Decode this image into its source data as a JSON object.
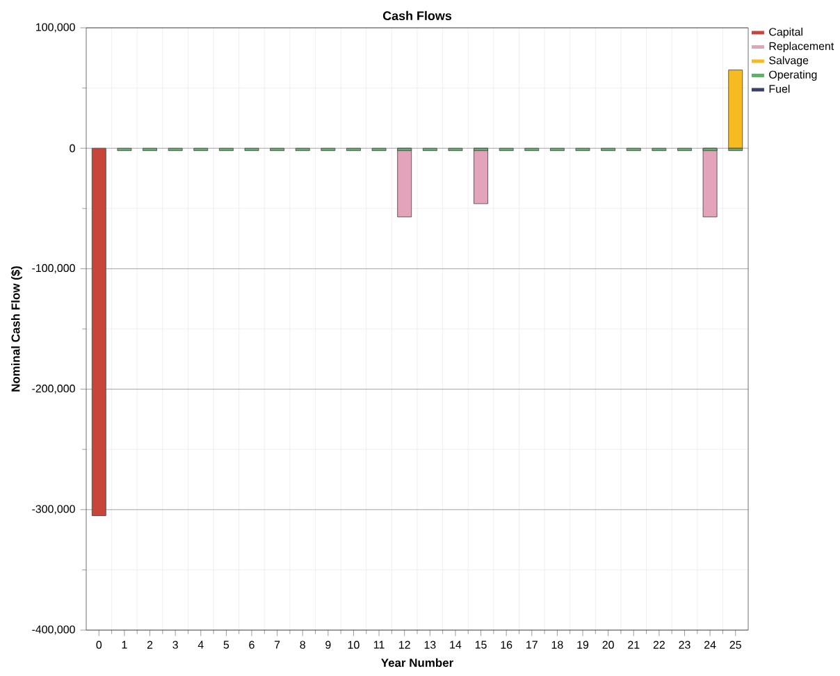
{
  "chart_data": {
    "type": "bar",
    "title": "Cash Flows",
    "xlabel": "Year Number",
    "ylabel": "Nominal Cash Flow ($)",
    "categories": [
      "0",
      "1",
      "2",
      "3",
      "4",
      "5",
      "6",
      "7",
      "8",
      "9",
      "10",
      "11",
      "12",
      "13",
      "14",
      "15",
      "16",
      "17",
      "18",
      "19",
      "20",
      "21",
      "22",
      "23",
      "24",
      "25"
    ],
    "series": [
      {
        "name": "Capital",
        "color": "#c8453a",
        "values": [
          -305000,
          null,
          null,
          null,
          null,
          null,
          null,
          null,
          null,
          null,
          null,
          null,
          null,
          null,
          null,
          null,
          null,
          null,
          null,
          null,
          null,
          null,
          null,
          null,
          null,
          null
        ]
      },
      {
        "name": "Replacement",
        "color": "#e3a3bb",
        "values": [
          null,
          null,
          null,
          null,
          null,
          null,
          null,
          null,
          null,
          null,
          null,
          null,
          -57000,
          null,
          null,
          -46000,
          null,
          null,
          null,
          null,
          null,
          null,
          null,
          null,
          -57000,
          null
        ]
      },
      {
        "name": "Salvage",
        "color": "#f6bb21",
        "values": [
          null,
          null,
          null,
          null,
          null,
          null,
          null,
          null,
          null,
          null,
          null,
          null,
          null,
          null,
          null,
          null,
          null,
          null,
          null,
          null,
          null,
          null,
          null,
          null,
          null,
          65000
        ]
      },
      {
        "name": "Operating",
        "color": "#62ae6e",
        "values": [
          null,
          -2000,
          -2000,
          -2000,
          -2000,
          -2000,
          -2000,
          -2000,
          -2000,
          -2000,
          -2000,
          -2000,
          -2000,
          -2000,
          -2000,
          -2000,
          -2000,
          -2000,
          -2000,
          -2000,
          -2000,
          -2000,
          -2000,
          -2000,
          -2000,
          -2000
        ]
      },
      {
        "name": "Fuel",
        "color": "#3b3f6b",
        "values": [
          null,
          null,
          null,
          null,
          null,
          null,
          null,
          null,
          null,
          null,
          null,
          null,
          null,
          null,
          null,
          null,
          null,
          null,
          null,
          null,
          null,
          null,
          null,
          null,
          null,
          null
        ]
      }
    ],
    "ylim": [
      -400000,
      100000
    ],
    "yticks": [
      {
        "value": -400000,
        "label": "-400,000"
      },
      {
        "value": -350000,
        "label": null
      },
      {
        "value": -300000,
        "label": "-300,000"
      },
      {
        "value": -250000,
        "label": null
      },
      {
        "value": -200000,
        "label": "-200,000"
      },
      {
        "value": -150000,
        "label": null
      },
      {
        "value": -100000,
        "label": "-100,000"
      },
      {
        "value": -50000,
        "label": null
      },
      {
        "value": 0,
        "label": "0"
      },
      {
        "value": 50000,
        "label": null
      },
      {
        "value": 100000,
        "label": "100,000"
      }
    ],
    "grid": true,
    "legend": "right"
  }
}
